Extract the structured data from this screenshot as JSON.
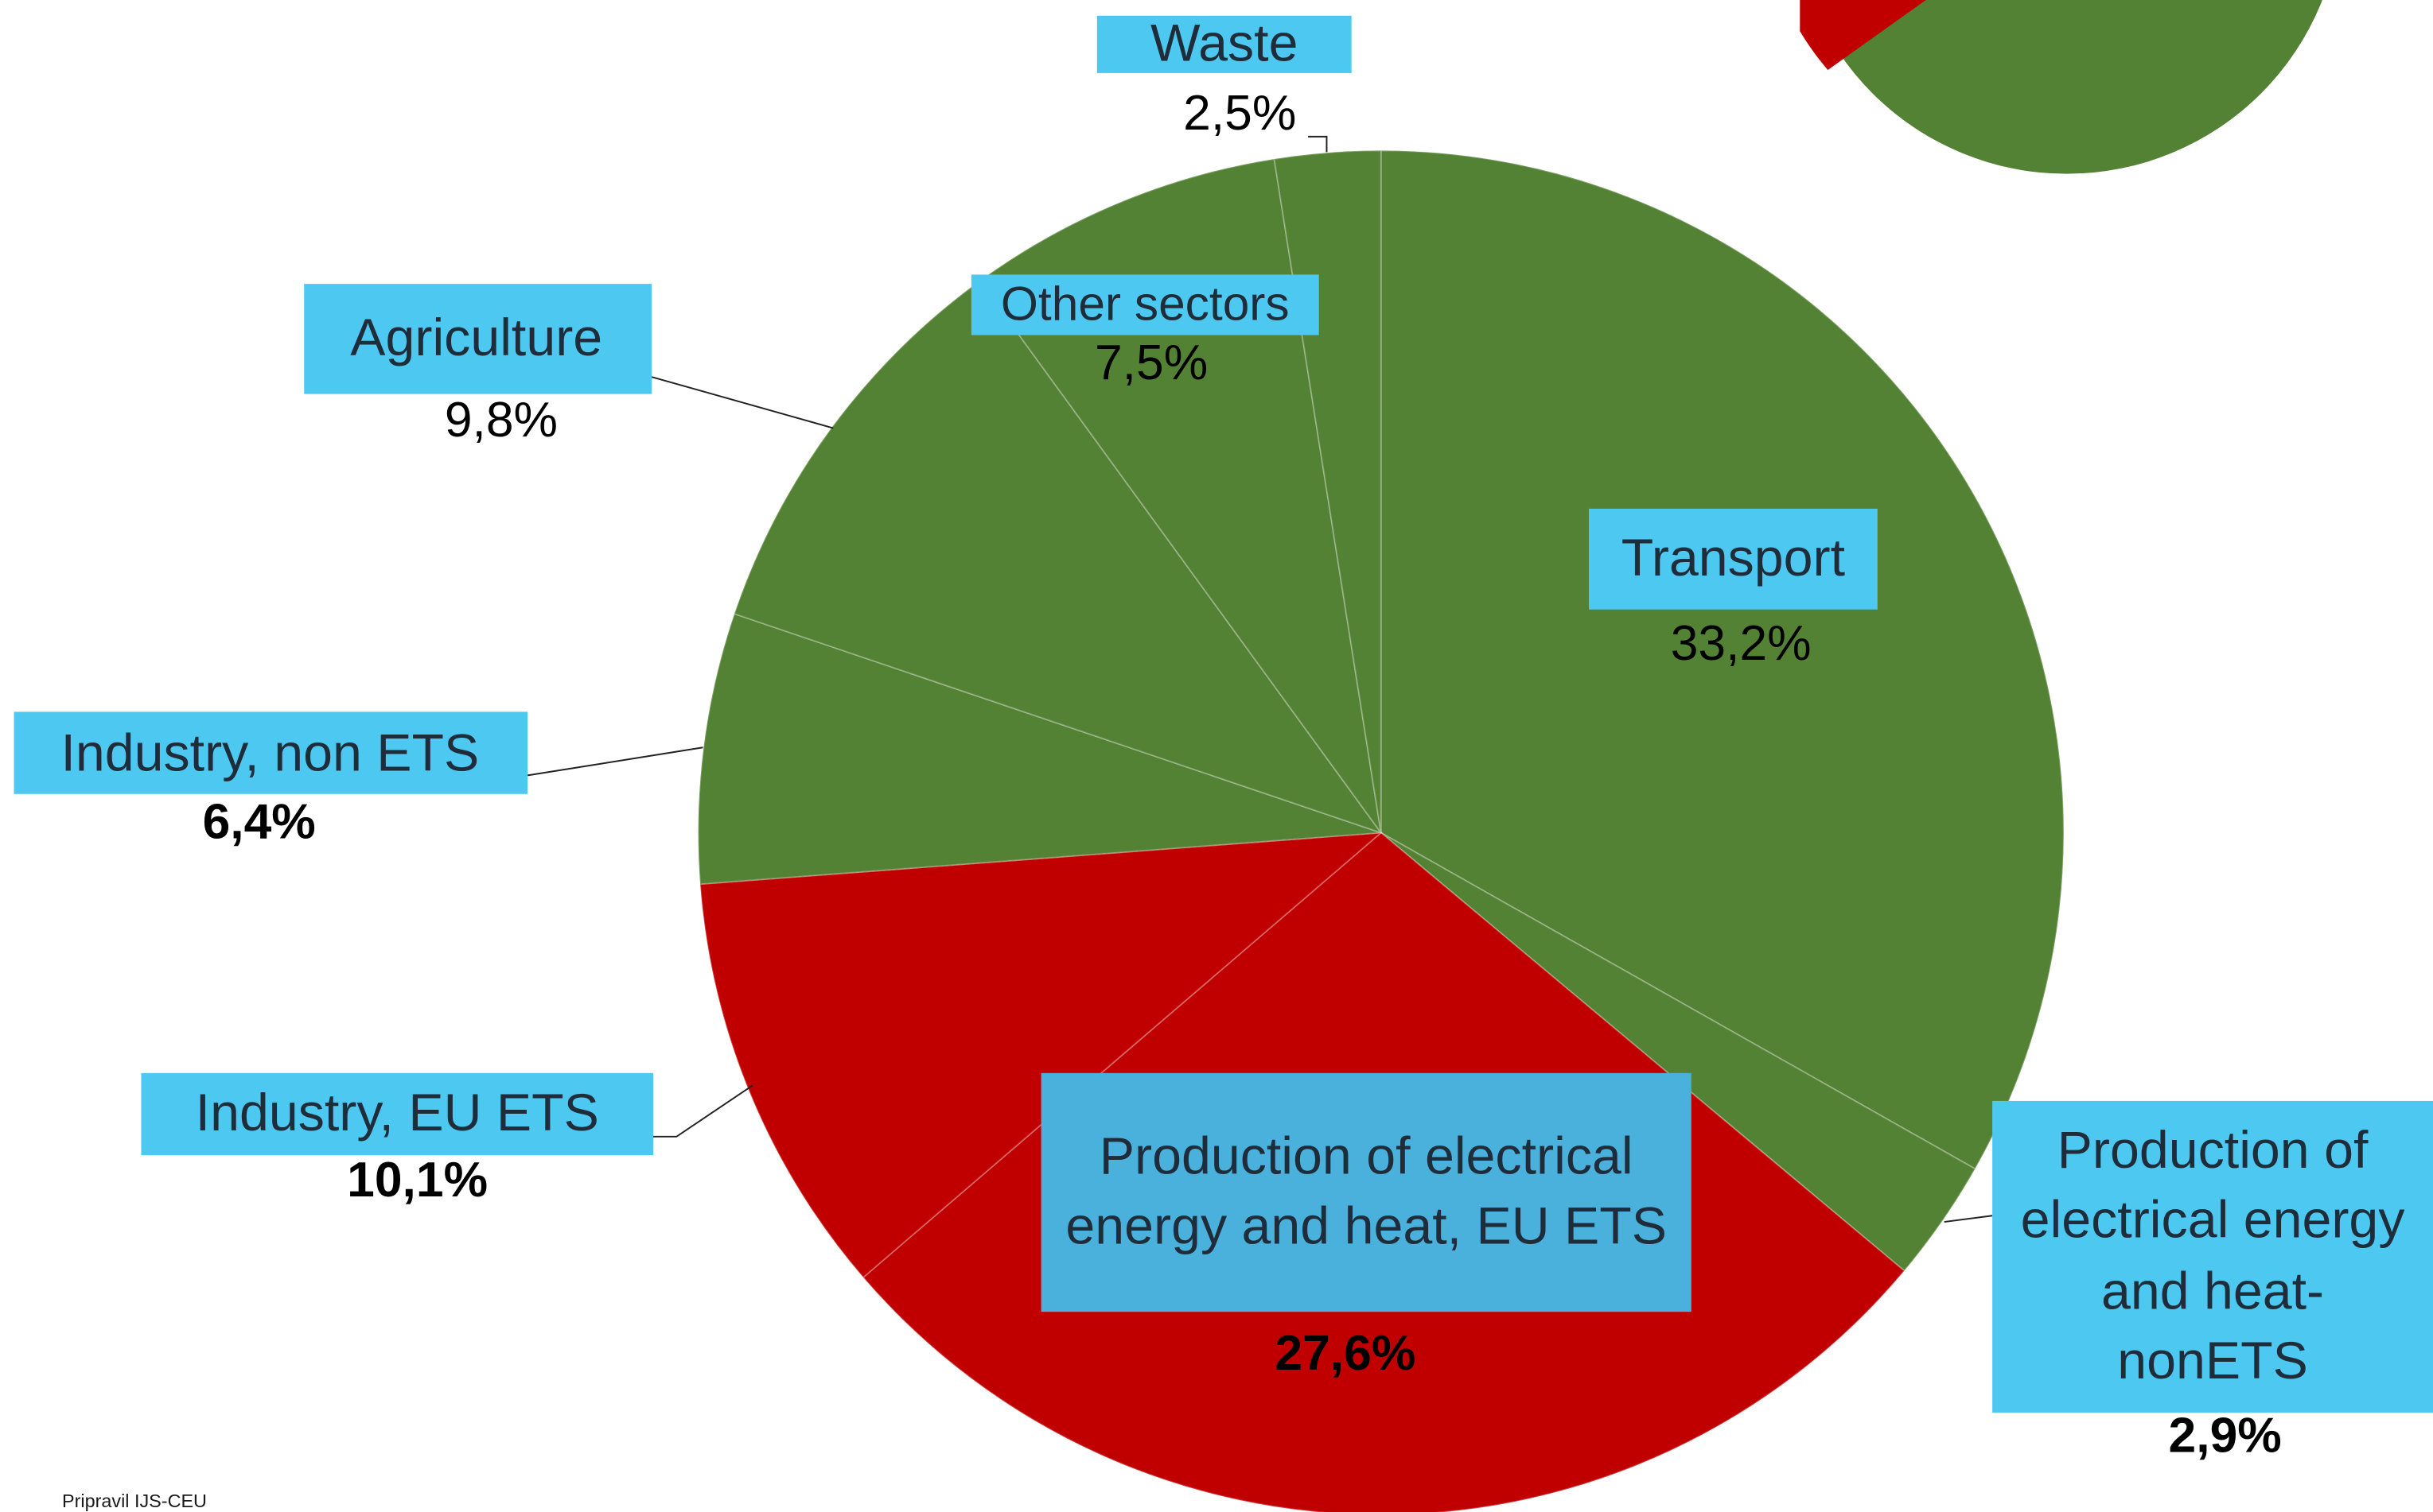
{
  "chart_data": {
    "type": "pie",
    "categories": [
      "Transport",
      "Production of electrical energy and heat- nonETS",
      "Production of electrical energy and heat, EU ETS",
      "Industry, EU ETS",
      "Industry, non ETS",
      "Agriculture",
      "Other sectors",
      "Waste"
    ],
    "values": [
      33.2,
      2.9,
      27.6,
      10.1,
      6.4,
      9.8,
      7.5,
      2.5
    ],
    "value_labels": [
      "33,2%",
      "2,9%",
      "27,6%",
      "10,1%",
      "6,4%",
      "9,8%",
      "7,5%",
      "2,5%"
    ],
    "colors": [
      "#548235",
      "#548235",
      "#c00000",
      "#c00000",
      "#548235",
      "#548235",
      "#548235",
      "#548235"
    ],
    "note": "Pripravil IJS-CEU"
  }
}
